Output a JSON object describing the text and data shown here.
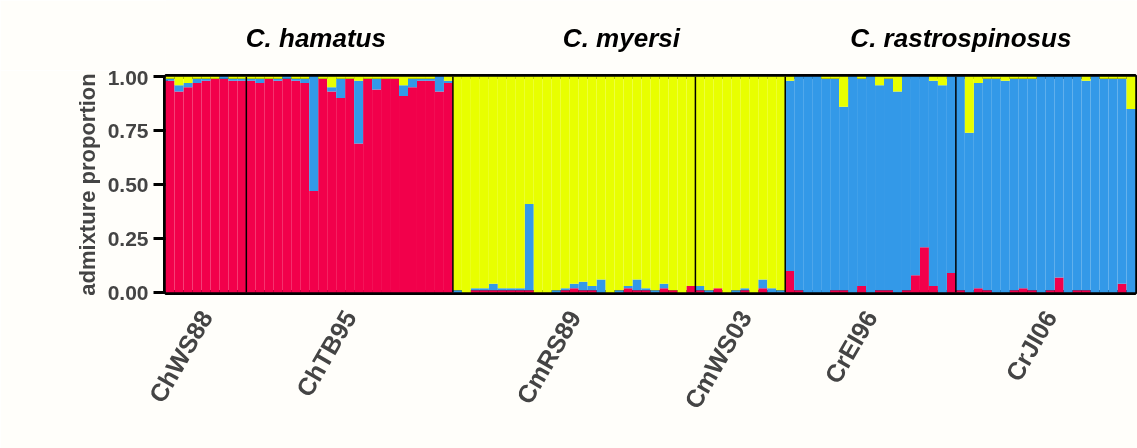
{
  "chart_data": {
    "type": "bar",
    "stacked": true,
    "ylabel": "admixture proportion",
    "annotations": [
      "C. hamatus",
      "C. myersi",
      "C. rastrospinosus"
    ],
    "categories": [
      null,
      null,
      null,
      null,
      "ChWS88",
      null,
      null,
      null,
      null,
      null,
      null,
      null,
      null,
      null,
      null,
      null,
      null,
      null,
      null,
      null,
      "ChTB95",
      null,
      null,
      null,
      null,
      null,
      null,
      null,
      null,
      null,
      null,
      null,
      null,
      null,
      null,
      null,
      null,
      null,
      null,
      null,
      null,
      null,
      null,
      null,
      null,
      "CmRS89",
      null,
      null,
      null,
      null,
      null,
      null,
      null,
      null,
      null,
      null,
      null,
      null,
      null,
      null,
      null,
      null,
      null,
      null,
      "CmWS03",
      null,
      null,
      null,
      null,
      null,
      null,
      null,
      null,
      null,
      null,
      null,
      null,
      null,
      "CrEI96",
      null,
      null,
      null,
      null,
      null,
      null,
      null,
      null,
      null,
      null,
      null,
      null,
      null,
      null,
      null,
      null,
      null,
      null,
      null,
      "CrJI06",
      null,
      null,
      null,
      null,
      null,
      null,
      null,
      null,
      null
    ],
    "ylim": [
      0,
      1
    ],
    "yticks": [
      {
        "value": 0,
        "label": "0.00"
      },
      {
        "value": 0.25,
        "label": "0.25"
      },
      {
        "value": 0.5,
        "label": "0.50"
      },
      {
        "value": 0.75,
        "label": "0.75"
      },
      {
        "value": 1,
        "label": "1.00"
      }
    ],
    "series": [
      {
        "color": "#f2004b",
        "values": [
          0.98,
          0.93,
          0.95,
          0.97,
          0.98,
          0.99,
          0.99,
          0.98,
          0.98,
          0.98,
          0.97,
          0.99,
          0.98,
          0.99,
          0.98,
          0.97,
          0.47,
          0.99,
          0.93,
          0.9,
          0.99,
          0.69,
          0.99,
          0.94,
          0.99,
          0.99,
          0.91,
          0.95,
          0.98,
          0.98,
          0.93,
          0.97,
          0.0,
          0.0,
          0.01,
          0.01,
          0.01,
          0.01,
          0.01,
          0.01,
          0.01,
          0.0,
          0.0,
          0.0,
          0.01,
          0.02,
          0.01,
          0.01,
          0.0,
          0.0,
          0.0,
          0.02,
          0.01,
          0.01,
          0.0,
          0.02,
          0.01,
          0.0,
          0.03,
          0.01,
          0.0,
          0.02,
          0.0,
          0.0,
          0.01,
          0.0,
          0.02,
          0.0,
          0.0,
          0.1,
          0.01,
          0.0,
          0.0,
          0.0,
          0.01,
          0.01,
          0.0,
          0.03,
          0.0,
          0.01,
          0.01,
          0.0,
          0.01,
          0.08,
          0.21,
          0.03,
          0.0,
          0.09,
          0.01,
          0.0,
          0.02,
          0.01,
          0.0,
          0.0,
          0.01,
          0.02,
          0.01,
          0.0,
          0.01,
          0.07,
          0.0,
          0.01,
          0.01,
          0.0,
          0.0,
          0.0,
          0.04,
          0.0
        ]
      },
      {
        "color": "#3399e8",
        "values": [
          0.01,
          0.03,
          0.02,
          0.02,
          0.01,
          0.0,
          0.01,
          0.01,
          0.01,
          0.01,
          0.02,
          0.0,
          0.01,
          0.01,
          0.01,
          0.02,
          0.53,
          0.0,
          0.02,
          0.09,
          0.0,
          0.29,
          0.0,
          0.05,
          0.0,
          0.0,
          0.05,
          0.04,
          0.01,
          0.01,
          0.07,
          0.01,
          0.01,
          0.0,
          0.01,
          0.01,
          0.03,
          0.01,
          0.01,
          0.01,
          0.4,
          0.0,
          0.0,
          0.01,
          0.01,
          0.02,
          0.04,
          0.02,
          0.06,
          0.0,
          0.01,
          0.01,
          0.05,
          0.01,
          0.01,
          0.02,
          0.0,
          0.0,
          0.0,
          0.02,
          0.01,
          0.0,
          0.0,
          0.01,
          0.01,
          0.0,
          0.04,
          0.02,
          0.01,
          0.88,
          0.99,
          1.0,
          1.0,
          0.99,
          0.98,
          0.85,
          1.0,
          0.96,
          1.0,
          0.95,
          0.98,
          0.93,
          0.99,
          0.92,
          0.79,
          0.95,
          0.96,
          0.91,
          0.99,
          0.74,
          0.95,
          0.98,
          0.99,
          0.98,
          0.98,
          0.97,
          0.98,
          1.0,
          0.99,
          0.93,
          1.0,
          0.99,
          0.97,
          1.0,
          0.99,
          0.99,
          0.95,
          0.85
        ]
      },
      {
        "color": "#e8ff00",
        "values": [
          0.01,
          0.04,
          0.03,
          0.01,
          0.01,
          0.01,
          0.0,
          0.01,
          0.01,
          0.01,
          0.01,
          0.01,
          0.01,
          0.0,
          0.01,
          0.01,
          0.0,
          0.01,
          0.05,
          0.01,
          0.01,
          0.02,
          0.01,
          0.01,
          0.01,
          0.01,
          0.04,
          0.01,
          0.01,
          0.01,
          0.0,
          0.02,
          0.99,
          1.0,
          0.98,
          0.98,
          0.96,
          0.98,
          0.98,
          0.98,
          0.59,
          1.0,
          1.0,
          0.99,
          0.98,
          0.96,
          0.95,
          0.97,
          0.94,
          1.0,
          0.99,
          0.97,
          0.94,
          0.98,
          0.99,
          0.96,
          0.99,
          1.0,
          0.97,
          0.97,
          0.99,
          0.98,
          1.0,
          0.99,
          0.98,
          1.0,
          0.94,
          0.98,
          0.99,
          0.02,
          0.0,
          0.0,
          0.0,
          0.01,
          0.01,
          0.14,
          0.0,
          0.01,
          0.0,
          0.04,
          0.01,
          0.07,
          0.0,
          0.0,
          0.0,
          0.02,
          0.04,
          0.0,
          0.0,
          0.26,
          0.03,
          0.01,
          0.01,
          0.02,
          0.01,
          0.01,
          0.01,
          0.0,
          0.0,
          0.0,
          0.0,
          0.0,
          0.02,
          0.0,
          0.01,
          0.01,
          0.01,
          0.15
        ]
      }
    ]
  }
}
